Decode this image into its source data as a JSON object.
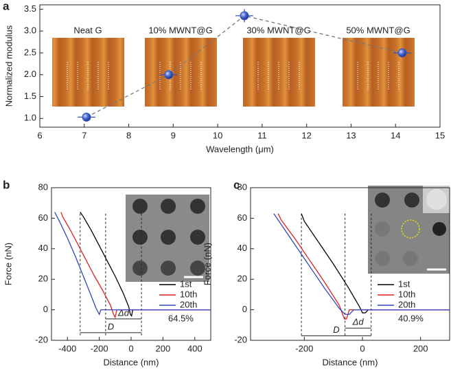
{
  "chart_data": [
    {
      "panel": "a",
      "type": "scatter",
      "xlabel": "Wavelength (μm)",
      "ylabel": "Normalized modulus",
      "x": [
        7.05,
        8.9,
        10.6,
        14.15
      ],
      "values": [
        1.03,
        2.0,
        3.35,
        2.5
      ],
      "x_err": [
        0.2,
        0.2,
        0.2,
        0.2
      ],
      "y_err": [
        0.04,
        0.06,
        0.15,
        0.06
      ],
      "color": "#3355bb",
      "line_color": "#777777",
      "line_style": "dashed",
      "xlim": [
        6,
        15
      ],
      "ylim": [
        0.8,
        3.6
      ],
      "xticks": [
        6,
        7,
        8,
        9,
        10,
        11,
        12,
        13,
        14,
        15
      ],
      "yticks": [
        {
          "value": 1,
          "label": "1.0"
        },
        1.5,
        {
          "value": 2,
          "label": "2.0"
        },
        2.5,
        {
          "value": 3,
          "label": "3.0"
        },
        3.5
      ],
      "insets": [
        "Neat G",
        "10% MWNT@G",
        "30% MWNT@G",
        "50% MWNT@G"
      ]
    },
    {
      "panel": "b",
      "type": "line",
      "xlabel": "Distance (nm)",
      "ylabel": "Force (nN)",
      "xlim": [
        -500,
        500
      ],
      "ylim": [
        -20,
        80
      ],
      "xticks": [
        -400,
        -200,
        0,
        200,
        400
      ],
      "yticks": [
        -20,
        0,
        20,
        40,
        60,
        80
      ],
      "series": [
        {
          "name": "1st",
          "color": "#000000",
          "x": [
            -320,
            -300,
            -250,
            -200,
            -150,
            -100,
            -50,
            -15,
            -5,
            3,
            10,
            500
          ],
          "values": [
            64,
            61,
            52,
            42,
            32,
            22,
            11,
            2,
            -3,
            -4,
            0,
            0
          ]
        },
        {
          "name": "10th",
          "color": "#e02020",
          "x": [
            -440,
            -430,
            -380,
            -330,
            -280,
            -230,
            -180,
            -130,
            -110,
            -100,
            -90,
            500
          ],
          "values": [
            64,
            61,
            52,
            42,
            32,
            22,
            13,
            3,
            -3,
            -5,
            0,
            0
          ]
        },
        {
          "name": "20th",
          "color": "#3344bb",
          "x": [
            -480,
            -450,
            -400,
            -350,
            -300,
            -250,
            -220,
            -200,
            -190,
            500
          ],
          "values": [
            64,
            58,
            47,
            35,
            22,
            9,
            1,
            -3,
            0,
            0
          ]
        }
      ],
      "guides": [
        -320,
        -160,
        65
      ],
      "spans": [
        {
          "label": "D",
          "x": [
            -320,
            65
          ],
          "y": -15
        },
        {
          "label": "Δd",
          "x": [
            -160,
            65
          ],
          "y": -6
        }
      ],
      "note": "64.5%"
    },
    {
      "panel": "c",
      "type": "line",
      "xlabel": "Distance (nm)",
      "ylabel": "Force (nN)",
      "xlim": [
        -385,
        300
      ],
      "ylim": [
        -20,
        80
      ],
      "xticks": [
        -200,
        0,
        200
      ],
      "yticks": [
        -20,
        0,
        20,
        40,
        60,
        80
      ],
      "series": [
        {
          "name": "1st",
          "color": "#000000",
          "x": [
            -210,
            -200,
            -150,
            -100,
            -50,
            -10,
            0,
            10,
            20,
            300
          ],
          "values": [
            63,
            58,
            44,
            30,
            15,
            2,
            -2,
            -2,
            0,
            0
          ]
        },
        {
          "name": "10th",
          "color": "#e02020",
          "x": [
            -290,
            -280,
            -230,
            -180,
            -130,
            -80,
            -62,
            -55,
            -45,
            300
          ],
          "values": [
            63,
            59,
            46,
            32,
            18,
            3,
            -6,
            -6,
            0,
            0
          ]
        },
        {
          "name": "20th",
          "color": "#3344bb",
          "x": [
            -305,
            -280,
            -230,
            -180,
            -130,
            -80,
            -60,
            -45,
            -30,
            300
          ],
          "values": [
            63,
            56,
            42,
            28,
            14,
            1,
            -3,
            -3,
            0,
            0
          ]
        }
      ],
      "guides": [
        -210,
        -60,
        30
      ],
      "spans": [
        {
          "label": "D",
          "x": [
            -210,
            30
          ],
          "y": -17
        },
        {
          "label": "Δd",
          "x": [
            -60,
            30
          ],
          "y": -12
        }
      ],
      "note": "40.9%"
    }
  ]
}
